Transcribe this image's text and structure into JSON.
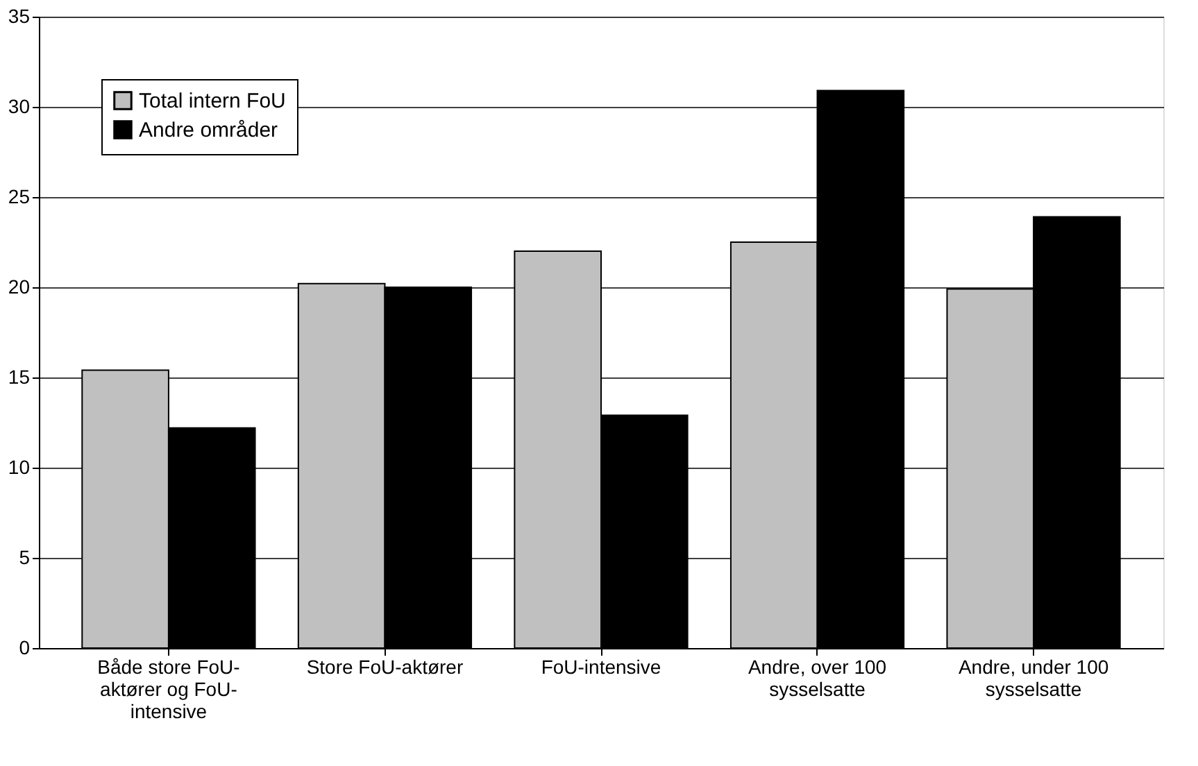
{
  "chart_data": {
    "type": "bar",
    "categories": [
      "Både store FoU-aktører og FoU-intensive",
      "Store FoU-aktører",
      "FoU-intensive",
      "Andre, over 100 sysselsatte",
      "Andre, under 100 sysselsatte"
    ],
    "series": [
      {
        "name": "Total intern FoU",
        "color": "#c0c0c0",
        "values": [
          15.4,
          20.2,
          22.0,
          22.5,
          19.9
        ]
      },
      {
        "name": "Andre områder",
        "color": "#000000",
        "values": [
          12.2,
          20.0,
          12.9,
          30.9,
          23.9
        ]
      }
    ],
    "ylim": [
      0,
      35
    ],
    "yticks": [
      0,
      5,
      10,
      15,
      20,
      25,
      30,
      35
    ],
    "grid": "y",
    "legend": "top left"
  }
}
